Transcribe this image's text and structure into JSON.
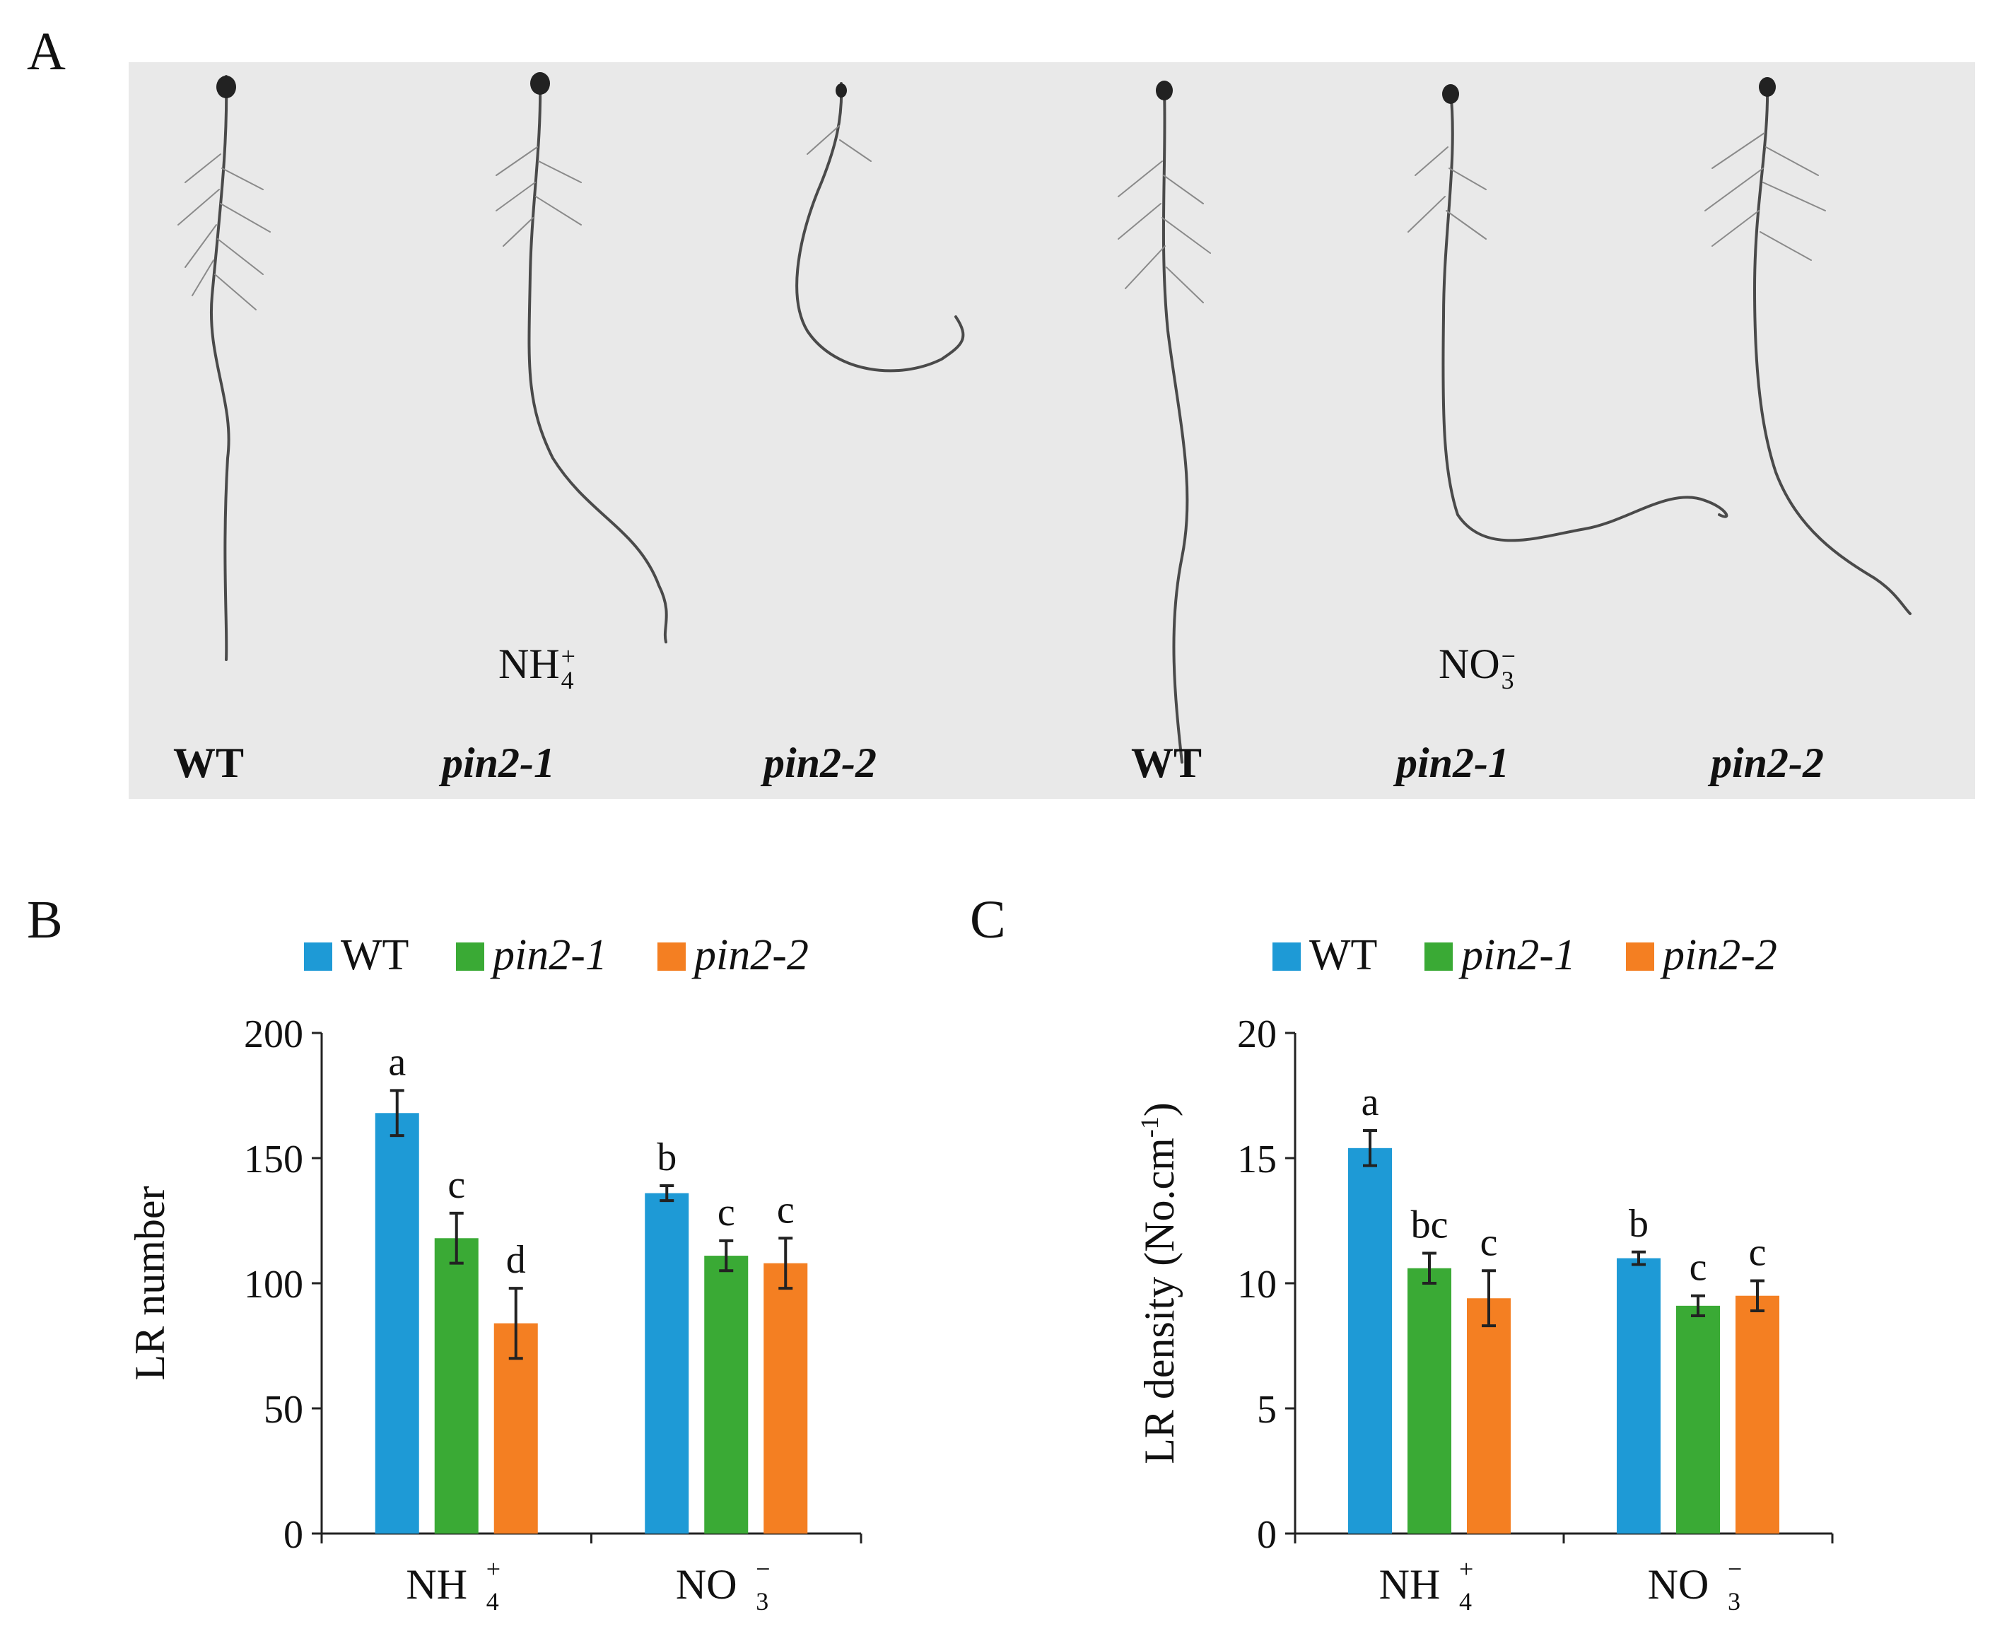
{
  "panels": {
    "a": "A",
    "b": "B",
    "c": "C"
  },
  "photo": {
    "labels": [
      {
        "text": "WT",
        "italic": false
      },
      {
        "text": "pin2-1",
        "italic": true
      },
      {
        "text": "pin2-2",
        "italic": true
      },
      {
        "text": "WT",
        "italic": false
      },
      {
        "text": "pin2-1",
        "italic": true
      },
      {
        "text": "pin2-2",
        "italic": true
      }
    ],
    "conditions": [
      {
        "base": "NH",
        "sub": "4",
        "sup": "+"
      },
      {
        "base": "NO",
        "sub": "3",
        "sup": "−"
      }
    ]
  },
  "colors": {
    "WT": "#1e9ad6",
    "pin2-1": "#3aaa35",
    "pin2-2": "#f47f22",
    "photo_bg": "#e9e9e9",
    "root": "#4a4a4a"
  },
  "chart_data": [
    {
      "type": "bar",
      "panel": "B",
      "categories": [
        {
          "base": "NH",
          "sub": "4",
          "sup": "+"
        },
        {
          "base": "NO",
          "sub": "3",
          "sup": "−"
        }
      ],
      "series": [
        {
          "name": "WT",
          "italic": false,
          "values": [
            168,
            136
          ],
          "errors": [
            9,
            3
          ],
          "letters": [
            "a",
            "b"
          ]
        },
        {
          "name": "pin2-1",
          "italic": true,
          "values": [
            118,
            111
          ],
          "errors": [
            10,
            6
          ],
          "letters": [
            "c",
            "c"
          ]
        },
        {
          "name": "pin2-2",
          "italic": true,
          "values": [
            84,
            108
          ],
          "errors": [
            14,
            10
          ],
          "letters": [
            "d",
            "c"
          ]
        }
      ],
      "ylabel": "LR number",
      "ylim": [
        0,
        200
      ],
      "yticks": [
        0,
        50,
        100,
        150,
        200
      ],
      "legend_position": "top"
    },
    {
      "type": "bar",
      "panel": "C",
      "categories": [
        {
          "base": "NH",
          "sub": "4",
          "sup": "+"
        },
        {
          "base": "NO",
          "sub": "3",
          "sup": "−"
        }
      ],
      "series": [
        {
          "name": "WT",
          "italic": false,
          "values": [
            15.4,
            11.0
          ],
          "errors": [
            0.7,
            0.25
          ],
          "letters": [
            "a",
            "b"
          ]
        },
        {
          "name": "pin2-1",
          "italic": true,
          "values": [
            10.6,
            9.1
          ],
          "errors": [
            0.6,
            0.4
          ],
          "letters": [
            "bc",
            "c"
          ]
        },
        {
          "name": "pin2-2",
          "italic": true,
          "values": [
            9.4,
            9.5
          ],
          "errors": [
            1.1,
            0.6
          ],
          "letters": [
            "c",
            "c"
          ]
        }
      ],
      "ylabel": "LR density (No.cm",
      "ylabel_sup": "-1",
      "ylabel_close": ")",
      "ylim": [
        0,
        20
      ],
      "yticks": [
        0,
        5,
        10,
        15,
        20
      ],
      "legend_position": "top"
    }
  ]
}
